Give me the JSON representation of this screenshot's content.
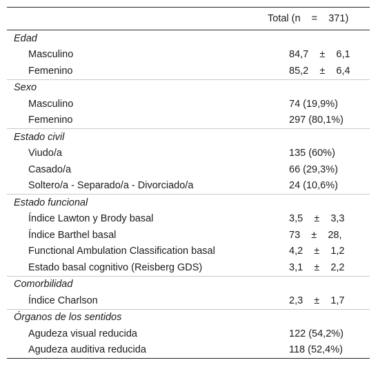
{
  "header": {
    "value": "Total (n    =    371)"
  },
  "sections": [
    {
      "title": "Edad",
      "rows": [
        {
          "label": "Masculino",
          "value": "84,7    ±    6,1"
        },
        {
          "label": "Femenino",
          "value": "85,2    ±    6,4"
        }
      ]
    },
    {
      "title": "Sexo",
      "rows": [
        {
          "label": "Masculino",
          "value": "74 (19,9%)"
        },
        {
          "label": "Femenino",
          "value": "297 (80,1%)"
        }
      ]
    },
    {
      "title": "Estado civil",
      "rows": [
        {
          "label": "Viudo/a",
          "value": "135 (60%)"
        },
        {
          "label": "Casado/a",
          "value": "66 (29,3%)"
        },
        {
          "label": "Soltero/a - Separado/a - Divorciado/a",
          "value": "24 (10,6%)"
        }
      ]
    },
    {
      "title": "Estado funcional",
      "rows": [
        {
          "label": "Índice Lawton y Brody basal",
          "value": "3,5    ±    3,3"
        },
        {
          "label": "Índice Barthel basal",
          "value": "73    ±    28,"
        },
        {
          "label": "Functional Ambulation Classification basal",
          "value": "4,2    ±    1,2"
        },
        {
          "label": "Estado basal cognitivo (Reisberg GDS)",
          "value": "3,1    ±    2,2"
        }
      ]
    },
    {
      "title": "Comorbilidad",
      "rows": [
        {
          "label": "Índice Charlson",
          "value": "2,3    ±    1,7"
        }
      ]
    },
    {
      "title": "Órganos de los sentidos",
      "rows": [
        {
          "label": "Agudeza visual reducida",
          "value": "122 (54,2%)"
        },
        {
          "label": "Agudeza auditiva reducida",
          "value": "118 (52,4%)"
        }
      ]
    }
  ]
}
